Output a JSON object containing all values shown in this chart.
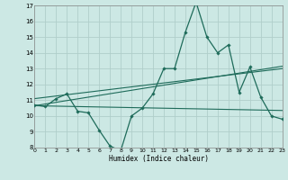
{
  "xlabel": "Humidex (Indice chaleur)",
  "bg_color": "#cce8e4",
  "grid_color": "#b0ceca",
  "line_color": "#1e6b5a",
  "x_values": [
    0,
    1,
    2,
    3,
    4,
    5,
    6,
    7,
    8,
    9,
    10,
    11,
    12,
    13,
    14,
    15,
    16,
    17,
    18,
    19,
    20,
    21,
    22,
    23
  ],
  "main_series": [
    10.7,
    10.6,
    11.1,
    11.4,
    10.3,
    10.2,
    9.1,
    8.1,
    7.8,
    10.0,
    10.5,
    11.4,
    13.0,
    13.0,
    15.3,
    17.2,
    15.0,
    14.0,
    14.5,
    11.5,
    13.1,
    11.2,
    10.0,
    9.8
  ],
  "ylim": [
    8,
    17
  ],
  "xlim": [
    0,
    23
  ],
  "yticks": [
    8,
    9,
    10,
    11,
    12,
    13,
    14,
    15,
    16,
    17
  ],
  "xticks": [
    0,
    1,
    2,
    3,
    4,
    5,
    6,
    7,
    8,
    9,
    10,
    11,
    12,
    13,
    14,
    15,
    16,
    17,
    18,
    19,
    20,
    21,
    22,
    23
  ],
  "reg_lines": [
    {
      "x_start": 0,
      "x_end": 23,
      "y_start": 10.65,
      "y_end": 10.35
    },
    {
      "x_start": 0,
      "x_end": 23,
      "y_start": 10.65,
      "y_end": 13.15
    },
    {
      "x_start": 0,
      "x_end": 23,
      "y_start": 11.1,
      "y_end": 13.0
    }
  ]
}
